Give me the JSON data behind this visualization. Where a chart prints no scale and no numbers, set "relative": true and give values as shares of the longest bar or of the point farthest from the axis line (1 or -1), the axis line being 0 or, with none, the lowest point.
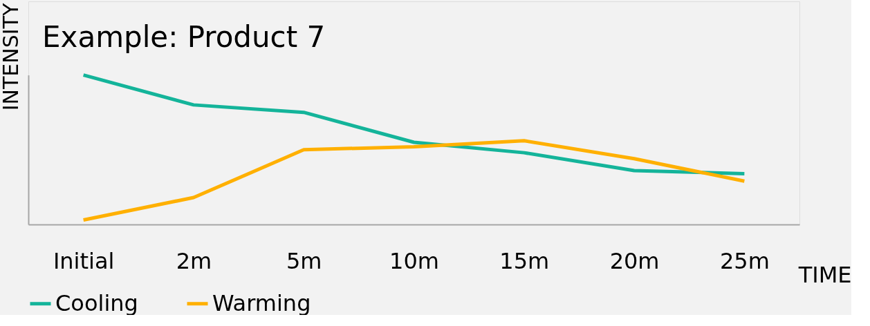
{
  "chart_data": {
    "type": "line",
    "title": "Example: Product 7",
    "xlabel": "TIME",
    "ylabel": "INTENSITY",
    "categories": [
      "Initial",
      "2m",
      "5m",
      "10m",
      "15m",
      "20m",
      "25m"
    ],
    "relative": true,
    "grid": false,
    "legend": "bottom",
    "marker": "none",
    "line_style": "solid",
    "series": [
      {
        "name": "Cooling",
        "color": "#14b49a",
        "values": [
          1.0,
          0.8,
          0.75,
          0.55,
          0.48,
          0.36,
          0.34
        ]
      },
      {
        "name": "Warming",
        "color": "#ffb000",
        "values": [
          0.03,
          0.18,
          0.5,
          0.52,
          0.56,
          0.44,
          0.29
        ]
      }
    ]
  }
}
